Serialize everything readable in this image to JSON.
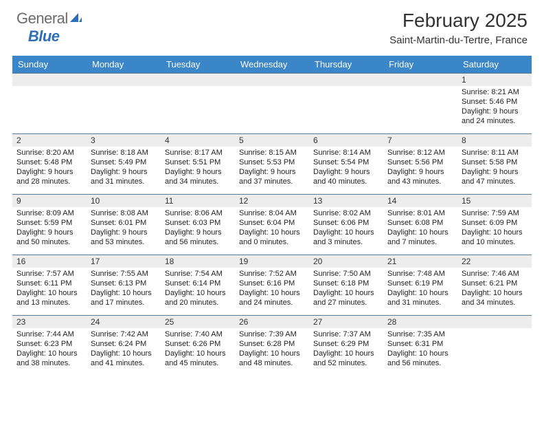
{
  "logo": {
    "text_general": "General",
    "text_blue": "Blue"
  },
  "header": {
    "title": "February 2025",
    "location": "Saint-Martin-du-Tertre, France"
  },
  "colors": {
    "header_bg": "#3a86c8",
    "header_fg": "#ffffff",
    "row_sep": "#5a7a99",
    "daynum_bg": "#ededed",
    "text": "#222222",
    "logo_gray": "#6b6b6b",
    "logo_blue": "#2d6fb5",
    "page_bg": "#ffffff"
  },
  "days_of_week": [
    "Sunday",
    "Monday",
    "Tuesday",
    "Wednesday",
    "Thursday",
    "Friday",
    "Saturday"
  ],
  "weeks": [
    [
      null,
      null,
      null,
      null,
      null,
      null,
      {
        "n": "1",
        "sunrise": "8:21 AM",
        "sunset": "5:46 PM",
        "daylight": "9 hours and 24 minutes."
      }
    ],
    [
      {
        "n": "2",
        "sunrise": "8:20 AM",
        "sunset": "5:48 PM",
        "daylight": "9 hours and 28 minutes."
      },
      {
        "n": "3",
        "sunrise": "8:18 AM",
        "sunset": "5:49 PM",
        "daylight": "9 hours and 31 minutes."
      },
      {
        "n": "4",
        "sunrise": "8:17 AM",
        "sunset": "5:51 PM",
        "daylight": "9 hours and 34 minutes."
      },
      {
        "n": "5",
        "sunrise": "8:15 AM",
        "sunset": "5:53 PM",
        "daylight": "9 hours and 37 minutes."
      },
      {
        "n": "6",
        "sunrise": "8:14 AM",
        "sunset": "5:54 PM",
        "daylight": "9 hours and 40 minutes."
      },
      {
        "n": "7",
        "sunrise": "8:12 AM",
        "sunset": "5:56 PM",
        "daylight": "9 hours and 43 minutes."
      },
      {
        "n": "8",
        "sunrise": "8:11 AM",
        "sunset": "5:58 PM",
        "daylight": "9 hours and 47 minutes."
      }
    ],
    [
      {
        "n": "9",
        "sunrise": "8:09 AM",
        "sunset": "5:59 PM",
        "daylight": "9 hours and 50 minutes."
      },
      {
        "n": "10",
        "sunrise": "8:08 AM",
        "sunset": "6:01 PM",
        "daylight": "9 hours and 53 minutes."
      },
      {
        "n": "11",
        "sunrise": "8:06 AM",
        "sunset": "6:03 PM",
        "daylight": "9 hours and 56 minutes."
      },
      {
        "n": "12",
        "sunrise": "8:04 AM",
        "sunset": "6:04 PM",
        "daylight": "10 hours and 0 minutes."
      },
      {
        "n": "13",
        "sunrise": "8:02 AM",
        "sunset": "6:06 PM",
        "daylight": "10 hours and 3 minutes."
      },
      {
        "n": "14",
        "sunrise": "8:01 AM",
        "sunset": "6:08 PM",
        "daylight": "10 hours and 7 minutes."
      },
      {
        "n": "15",
        "sunrise": "7:59 AM",
        "sunset": "6:09 PM",
        "daylight": "10 hours and 10 minutes."
      }
    ],
    [
      {
        "n": "16",
        "sunrise": "7:57 AM",
        "sunset": "6:11 PM",
        "daylight": "10 hours and 13 minutes."
      },
      {
        "n": "17",
        "sunrise": "7:55 AM",
        "sunset": "6:13 PM",
        "daylight": "10 hours and 17 minutes."
      },
      {
        "n": "18",
        "sunrise": "7:54 AM",
        "sunset": "6:14 PM",
        "daylight": "10 hours and 20 minutes."
      },
      {
        "n": "19",
        "sunrise": "7:52 AM",
        "sunset": "6:16 PM",
        "daylight": "10 hours and 24 minutes."
      },
      {
        "n": "20",
        "sunrise": "7:50 AM",
        "sunset": "6:18 PM",
        "daylight": "10 hours and 27 minutes."
      },
      {
        "n": "21",
        "sunrise": "7:48 AM",
        "sunset": "6:19 PM",
        "daylight": "10 hours and 31 minutes."
      },
      {
        "n": "22",
        "sunrise": "7:46 AM",
        "sunset": "6:21 PM",
        "daylight": "10 hours and 34 minutes."
      }
    ],
    [
      {
        "n": "23",
        "sunrise": "7:44 AM",
        "sunset": "6:23 PM",
        "daylight": "10 hours and 38 minutes."
      },
      {
        "n": "24",
        "sunrise": "7:42 AM",
        "sunset": "6:24 PM",
        "daylight": "10 hours and 41 minutes."
      },
      {
        "n": "25",
        "sunrise": "7:40 AM",
        "sunset": "6:26 PM",
        "daylight": "10 hours and 45 minutes."
      },
      {
        "n": "26",
        "sunrise": "7:39 AM",
        "sunset": "6:28 PM",
        "daylight": "10 hours and 48 minutes."
      },
      {
        "n": "27",
        "sunrise": "7:37 AM",
        "sunset": "6:29 PM",
        "daylight": "10 hours and 52 minutes."
      },
      {
        "n": "28",
        "sunrise": "7:35 AM",
        "sunset": "6:31 PM",
        "daylight": "10 hours and 56 minutes."
      },
      null
    ]
  ],
  "labels": {
    "sunrise": "Sunrise: ",
    "sunset": "Sunset: ",
    "daylight": "Daylight: "
  }
}
